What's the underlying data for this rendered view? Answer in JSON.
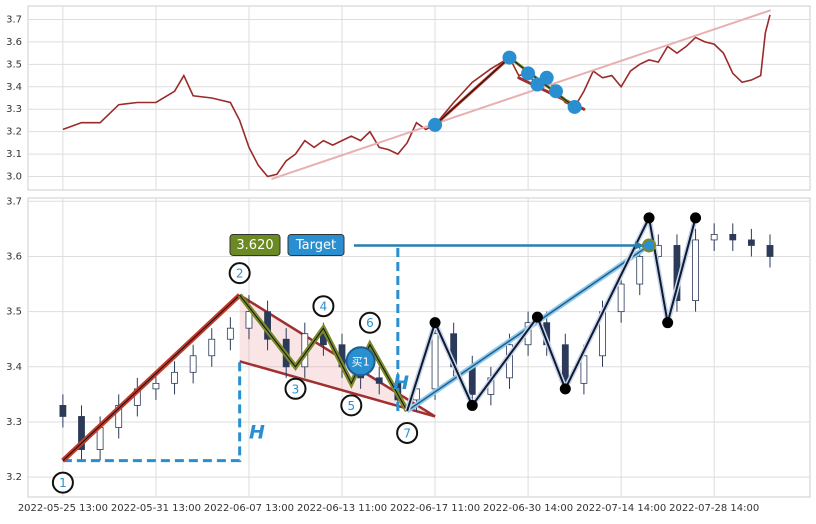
{
  "chart_data": [
    {
      "type": "line",
      "color": "#9b2a2a",
      "x": [
        0,
        4,
        8,
        12,
        16,
        20,
        24,
        26,
        28,
        32,
        36,
        38,
        40,
        42,
        44,
        46,
        48,
        50,
        52,
        54,
        56,
        58,
        60,
        62,
        64,
        66,
        68,
        70,
        72,
        74,
        76,
        78,
        80,
        84,
        88,
        92,
        96,
        98,
        100,
        102,
        104,
        106,
        108,
        110,
        112,
        114,
        116,
        118,
        120,
        122,
        124,
        126,
        128,
        130,
        132,
        134,
        136,
        138,
        140,
        142,
        144,
        146,
        148,
        150,
        151,
        152
      ],
      "values": [
        3.21,
        3.24,
        3.24,
        3.32,
        3.33,
        3.33,
        3.38,
        3.45,
        3.36,
        3.35,
        3.33,
        3.25,
        3.13,
        3.05,
        3.0,
        3.01,
        3.07,
        3.1,
        3.16,
        3.13,
        3.16,
        3.14,
        3.16,
        3.18,
        3.16,
        3.2,
        3.13,
        3.12,
        3.1,
        3.15,
        3.24,
        3.21,
        3.23,
        3.33,
        3.42,
        3.48,
        3.53,
        3.45,
        3.46,
        3.4,
        3.44,
        3.38,
        3.33,
        3.31,
        3.38,
        3.47,
        3.44,
        3.45,
        3.4,
        3.47,
        3.5,
        3.52,
        3.51,
        3.58,
        3.55,
        3.58,
        3.62,
        3.6,
        3.59,
        3.55,
        3.46,
        3.42,
        3.43,
        3.45,
        3.64,
        3.72
      ],
      "xlim": [
        -7.5,
        160.6
      ],
      "ylim": [
        2.94,
        3.76
      ],
      "yticks": [
        {
          "value": 3,
          "label": "3.0"
        },
        3.1,
        3.2,
        3.3,
        3.4,
        3.5,
        3.6,
        3.7
      ],
      "xticks": [
        0,
        20,
        40,
        60,
        80,
        100,
        120,
        140
      ],
      "grid": true,
      "lines": [
        {
          "color": "#e8b0b0",
          "x": [
            45,
            152
          ],
          "y": [
            2.99,
            3.74
          ]
        },
        {
          "color": "#a03030",
          "x": [
            98,
            112
          ],
          "y": [
            3.44,
            3.3
          ]
        },
        {
          "color": "#c0392b",
          "x": [
            80,
            96
          ],
          "y": [
            3.23,
            3.53
          ]
        },
        {
          "color": "#7a8a2a",
          "x": [
            96,
            110
          ],
          "y": [
            3.53,
            3.31
          ]
        }
      ],
      "points": {
        "color": "#2a8fd0",
        "x": [
          80,
          96,
          100,
          102,
          104,
          106,
          110
        ],
        "y": [
          3.23,
          3.53,
          3.46,
          3.41,
          3.44,
          3.38,
          3.31
        ]
      }
    },
    {
      "type": "candlestick",
      "x": [
        0,
        4,
        8,
        12,
        16,
        20,
        24,
        28,
        32,
        36,
        40,
        44,
        48,
        52,
        56,
        60,
        64,
        68,
        72,
        76,
        80,
        84,
        88,
        92,
        96,
        100,
        104,
        108,
        112,
        116,
        120,
        124,
        128,
        132,
        136,
        140,
        144,
        148,
        152
      ],
      "open": [
        3.33,
        3.31,
        3.25,
        3.29,
        3.33,
        3.36,
        3.37,
        3.39,
        3.42,
        3.45,
        3.47,
        3.5,
        3.45,
        3.4,
        3.46,
        3.44,
        3.4,
        3.38,
        3.37,
        3.34,
        3.36,
        3.46,
        3.4,
        3.35,
        3.38,
        3.44,
        3.48,
        3.44,
        3.37,
        3.42,
        3.5,
        3.55,
        3.6,
        3.62,
        3.52,
        3.63,
        3.64,
        3.63,
        3.62
      ],
      "high": [
        3.35,
        3.33,
        3.31,
        3.35,
        3.38,
        3.39,
        3.41,
        3.44,
        3.47,
        3.49,
        3.53,
        3.52,
        3.47,
        3.48,
        3.48,
        3.46,
        3.42,
        3.4,
        3.39,
        3.38,
        3.48,
        3.48,
        3.42,
        3.4,
        3.46,
        3.5,
        3.5,
        3.46,
        3.44,
        3.52,
        3.57,
        3.62,
        3.64,
        3.64,
        3.65,
        3.66,
        3.66,
        3.65,
        3.64
      ],
      "low": [
        3.29,
        3.23,
        3.23,
        3.27,
        3.31,
        3.34,
        3.35,
        3.37,
        3.4,
        3.43,
        3.45,
        3.43,
        3.38,
        3.38,
        3.42,
        3.38,
        3.36,
        3.35,
        3.32,
        3.32,
        3.34,
        3.38,
        3.33,
        3.33,
        3.36,
        3.42,
        3.42,
        3.35,
        3.35,
        3.4,
        3.48,
        3.53,
        3.58,
        3.5,
        3.5,
        3.61,
        3.61,
        3.6,
        3.58
      ],
      "close": [
        3.31,
        3.25,
        3.29,
        3.33,
        3.36,
        3.37,
        3.39,
        3.42,
        3.45,
        3.47,
        3.5,
        3.45,
        3.4,
        3.46,
        3.44,
        3.4,
        3.38,
        3.37,
        3.34,
        3.36,
        3.46,
        3.4,
        3.35,
        3.38,
        3.44,
        3.48,
        3.44,
        3.37,
        3.42,
        3.5,
        3.55,
        3.6,
        3.62,
        3.52,
        3.63,
        3.64,
        3.63,
        3.62,
        3.6
      ],
      "up_color": "#ffffff",
      "down_color": "#2c3a5a",
      "xlim": [
        -7.5,
        160.6
      ],
      "ylim": [
        3.164,
        3.706
      ],
      "yticks": [
        3.2,
        3.3,
        3.4,
        3.5,
        3.6,
        3.7
      ],
      "xticks": [
        {
          "value": 0,
          "label": "2022-05-25 13:00"
        },
        {
          "value": 20,
          "label": "2022-05-31 13:00"
        },
        {
          "value": 40,
          "label": "2022-06-07 13:00"
        },
        {
          "value": 60,
          "label": "2022-06-13 11:00"
        },
        {
          "value": 80,
          "label": "2022-06-17 11:00"
        },
        {
          "value": 100,
          "label": "2022-06-30 14:00"
        },
        {
          "value": 120,
          "label": "2022-07-14 14:00"
        },
        {
          "value": 140,
          "label": "2022-07-28 14:00"
        }
      ],
      "grid": true,
      "pattern": {
        "labels": [
          "1",
          "2",
          "3",
          "4",
          "5",
          "6",
          "7"
        ],
        "x": [
          0,
          38,
          50,
          56,
          62,
          66,
          74
        ],
        "y": [
          3.23,
          3.53,
          3.4,
          3.47,
          3.37,
          3.44,
          3.32
        ]
      },
      "zigzag": {
        "x": [
          74,
          80,
          88,
          102,
          108,
          126,
          130,
          136
        ],
        "y": [
          3.32,
          3.48,
          3.33,
          3.49,
          3.36,
          3.67,
          3.48,
          3.67
        ]
      },
      "target": {
        "value": 3.62,
        "label": "3.620",
        "name": "Target",
        "from_x": 74,
        "to_x": 126
      },
      "buy": {
        "label": "买1",
        "x": 64,
        "y": 3.41
      },
      "wedge": {
        "x": [
          38,
          80
        ],
        "upper": [
          3.53,
          3.31
        ],
        "lower": [
          3.41,
          3.31
        ]
      },
      "annotations": [
        {
          "text": "H",
          "x": 40,
          "y": 3.28
        },
        {
          "text": "H",
          "x": 71,
          "y": 3.37
        }
      ]
    }
  ]
}
